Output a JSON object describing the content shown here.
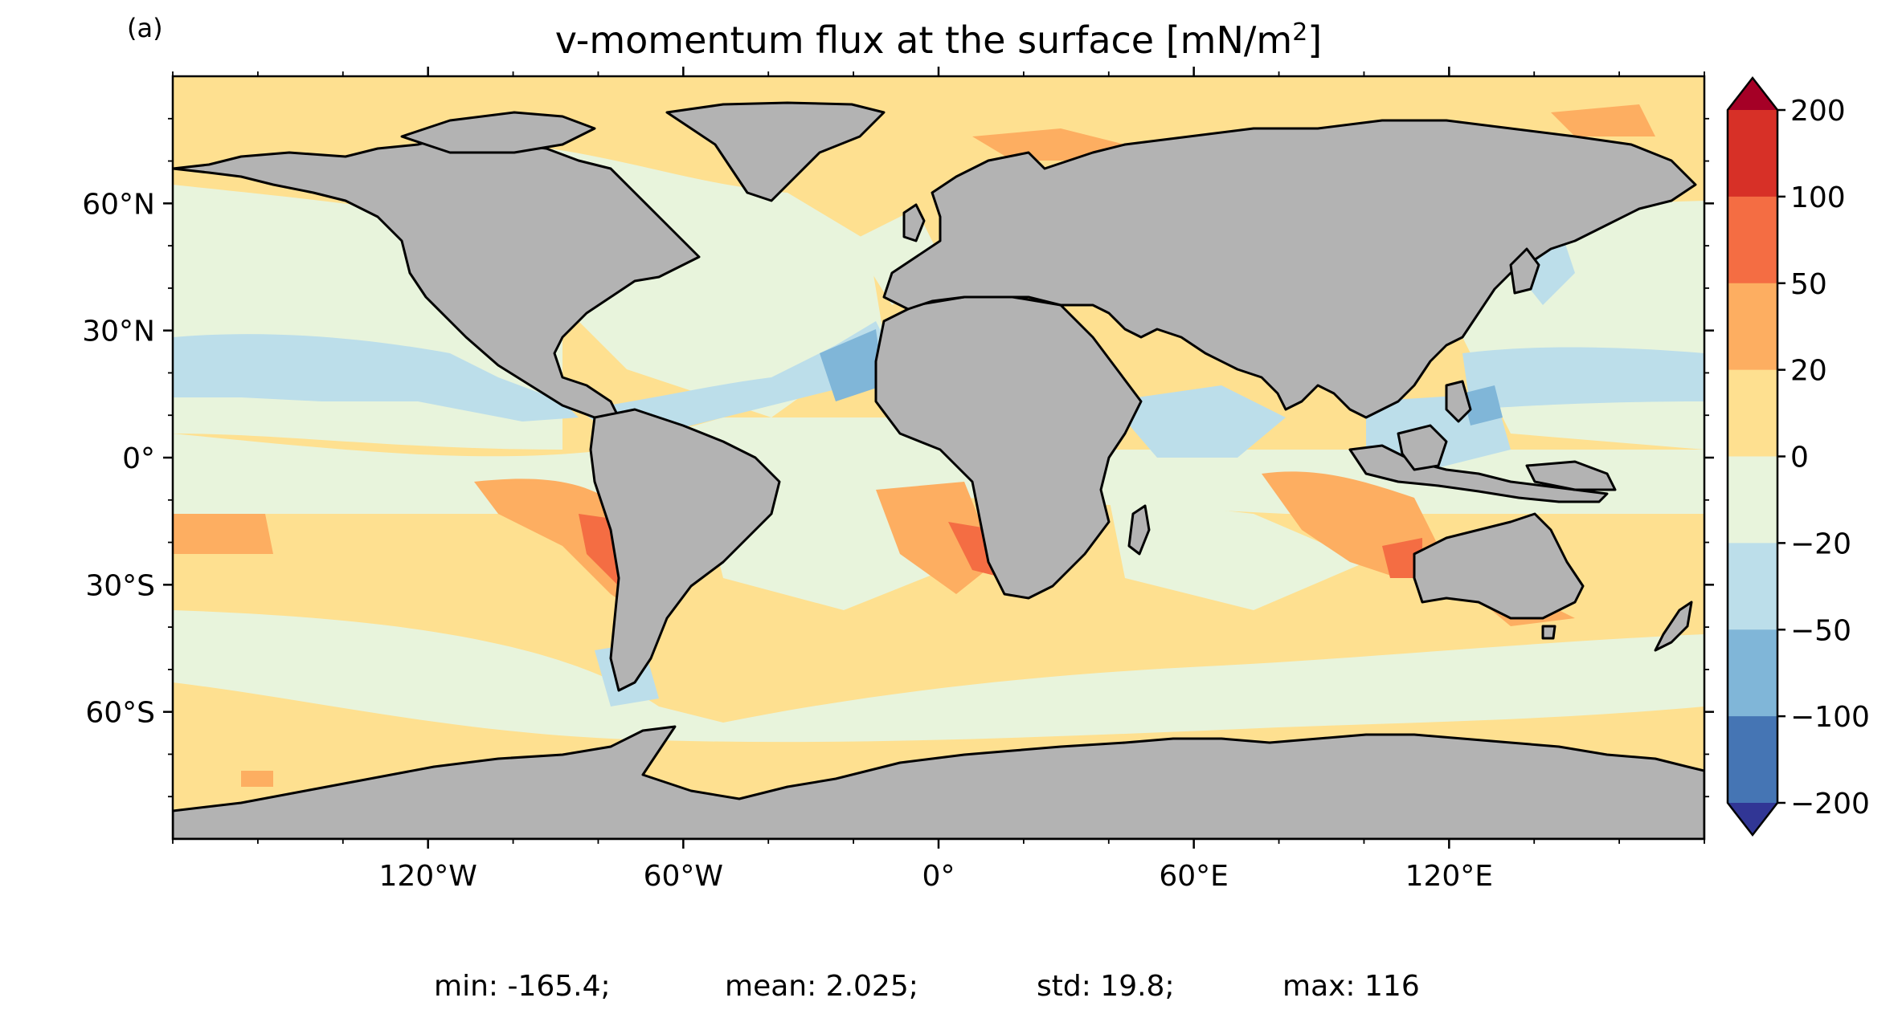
{
  "panel_label": "(a)",
  "title": {
    "main": "v-momentum flux at the surface [mN/m",
    "superscript": "2",
    "close": "]"
  },
  "axes": {
    "lat_ticks": [
      "60°N",
      "30°N",
      "0°",
      "30°S",
      "60°S"
    ],
    "lon_ticks": [
      "120°W",
      "60°W",
      "0°",
      "60°E",
      "120°E"
    ]
  },
  "colorbar": {
    "tick_labels": [
      "200",
      "100",
      "50",
      "20",
      "0",
      "−20",
      "−50",
      "−100",
      "−200"
    ],
    "bins": [
      {
        "range": ">200",
        "color": "#a50026"
      },
      {
        "range": "100 to 200",
        "color": "#d73027"
      },
      {
        "range": "50 to 100",
        "color": "#f46d43"
      },
      {
        "range": "20 to 50",
        "color": "#fdae61"
      },
      {
        "range": "0 to 20",
        "color": "#fee090"
      },
      {
        "range": "-20 to 0",
        "color": "#e8f4dc"
      },
      {
        "range": "-50 to -20",
        "color": "#bcdeea"
      },
      {
        "range": "-100 to -50",
        "color": "#80b6d8"
      },
      {
        "range": "-200 to -100",
        "color": "#4575b4"
      },
      {
        "range": "<-200",
        "color": "#313695"
      }
    ],
    "extend": "both"
  },
  "land_color": "#b3b3b3",
  "stats": {
    "min": "min: -165.4;",
    "mean": "mean: 2.025;",
    "std": "std: 19.8;",
    "max": "max: 116"
  }
}
